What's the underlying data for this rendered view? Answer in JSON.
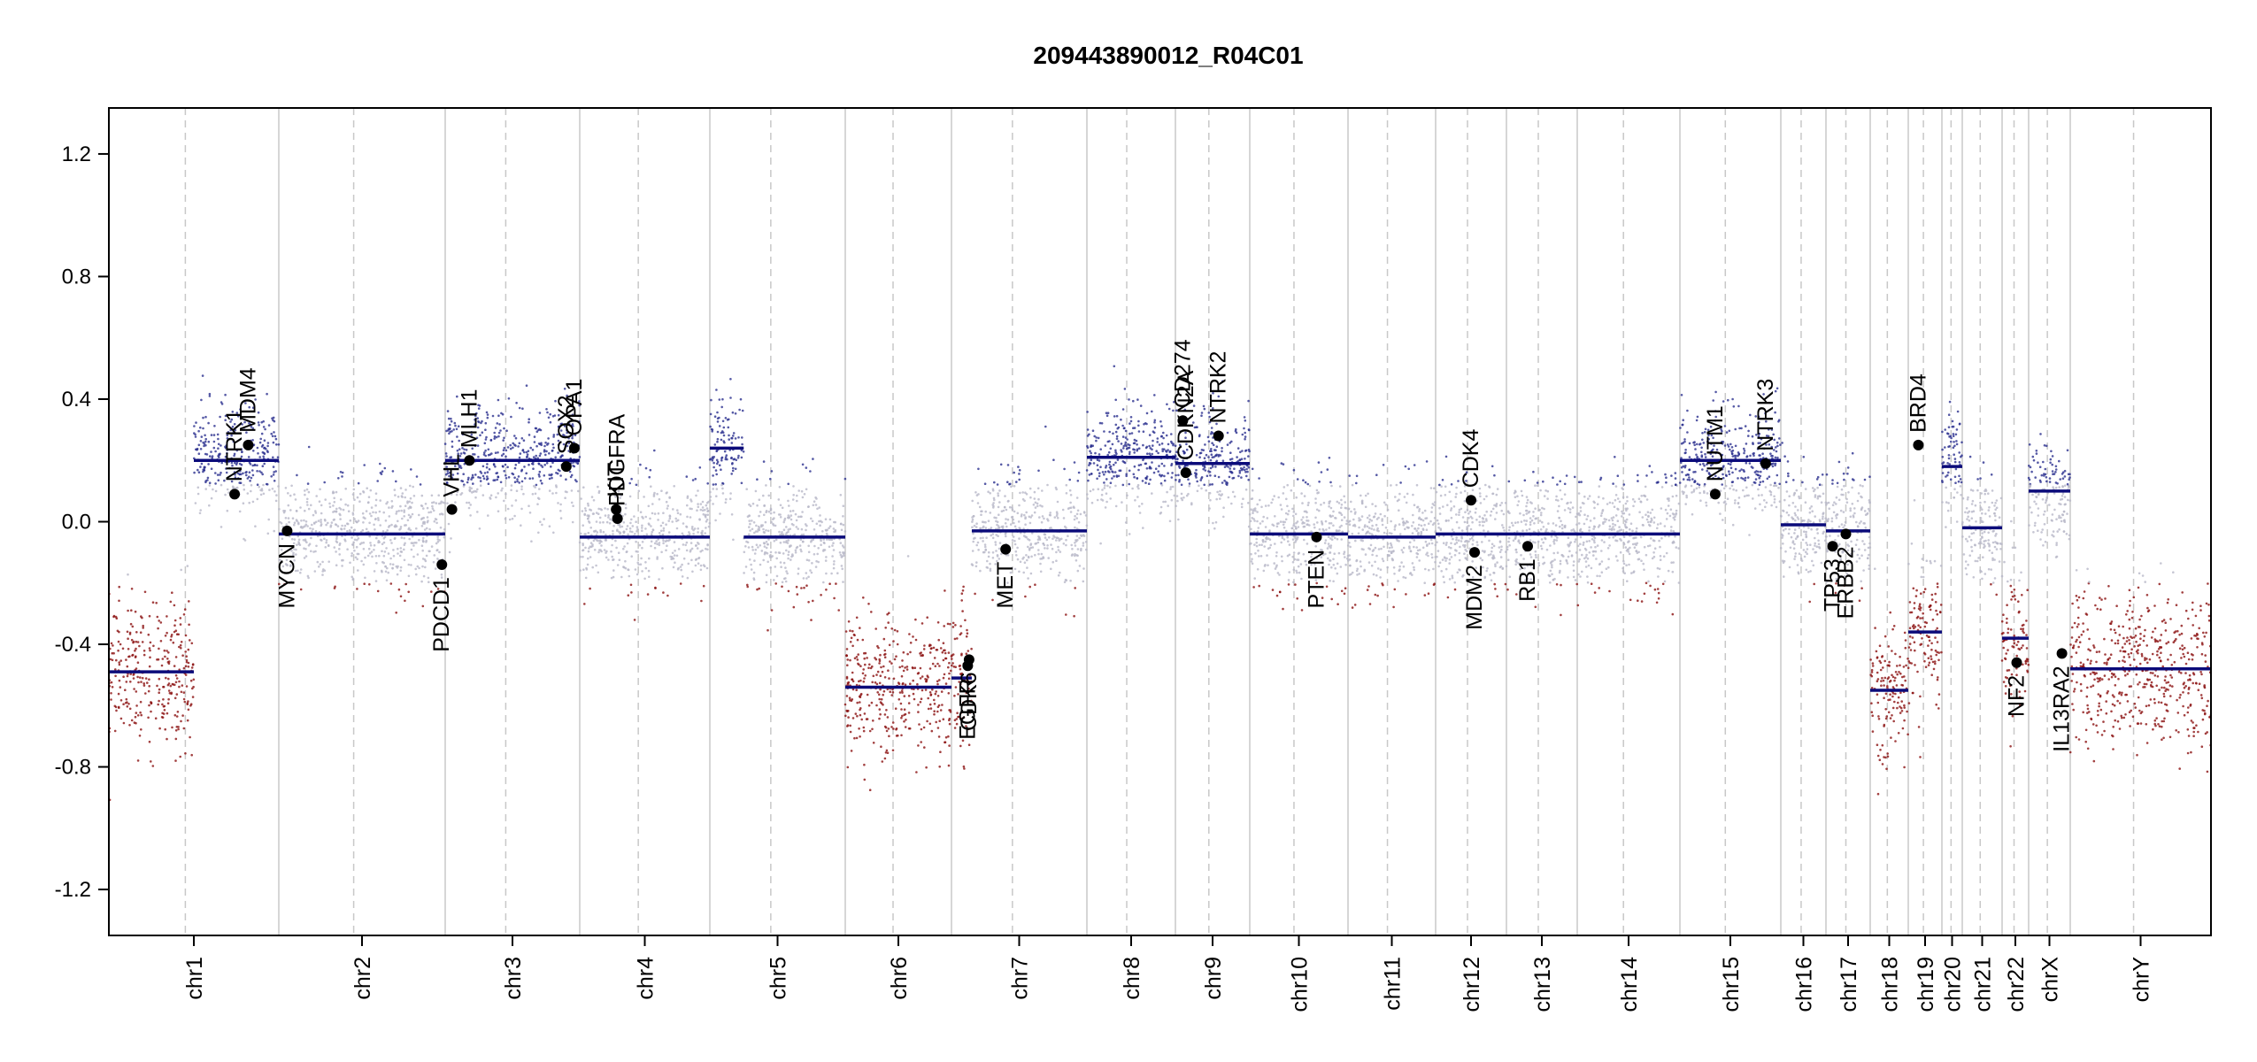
{
  "chart_data": {
    "type": "scatter",
    "title": "209443890012_R04C01",
    "xlabel": "",
    "ylabel": "",
    "ylim": [
      -1.35,
      1.35
    ],
    "y_ticks": [
      -1.2,
      -0.8,
      -0.4,
      0.0,
      0.4,
      0.8,
      1.2
    ],
    "y_tick_labels": [
      "-1.2",
      "-0.8",
      "-0.4",
      "0.0",
      "0.4",
      "0.8",
      "1.2"
    ],
    "grid": false,
    "point_colors": {
      "gain": "#2b2f8f",
      "neutral": "#b8b8c8",
      "loss": "#8b1010"
    },
    "segment_color": "#0b0b7a",
    "chromosomes": [
      {
        "label": "chr1",
        "segments": [
          {
            "f0": 0.0,
            "f1": 0.5,
            "value": -0.49
          },
          {
            "f0": 0.5,
            "f1": 1.0,
            "value": 0.2
          }
        ]
      },
      {
        "label": "chr2",
        "segments": [
          {
            "f0": 0.0,
            "f1": 1.0,
            "value": -0.04
          }
        ]
      },
      {
        "label": "chr3",
        "segments": [
          {
            "f0": 0.0,
            "f1": 1.0,
            "value": 0.2
          }
        ]
      },
      {
        "label": "chr4",
        "segments": [
          {
            "f0": 0.0,
            "f1": 1.0,
            "value": -0.05
          }
        ]
      },
      {
        "label": "chr5",
        "segments": [
          {
            "f0": 0.0,
            "f1": 0.25,
            "value": 0.24
          },
          {
            "f0": 0.25,
            "f1": 1.0,
            "value": -0.05
          }
        ]
      },
      {
        "label": "chr6",
        "segments": [
          {
            "f0": 0.0,
            "f1": 1.0,
            "value": -0.54
          }
        ]
      },
      {
        "label": "chr7",
        "segments": [
          {
            "f0": 0.0,
            "f1": 0.15,
            "value": -0.51
          },
          {
            "f0": 0.15,
            "f1": 1.0,
            "value": -0.03
          }
        ]
      },
      {
        "label": "chr8",
        "segments": [
          {
            "f0": 0.0,
            "f1": 1.0,
            "value": 0.21
          }
        ]
      },
      {
        "label": "chr9",
        "segments": [
          {
            "f0": 0.0,
            "f1": 1.0,
            "value": 0.19
          }
        ]
      },
      {
        "label": "chr10",
        "segments": [
          {
            "f0": 0.0,
            "f1": 1.0,
            "value": -0.04
          }
        ]
      },
      {
        "label": "chr11",
        "segments": [
          {
            "f0": 0.0,
            "f1": 1.0,
            "value": -0.05
          }
        ]
      },
      {
        "label": "chr12",
        "segments": [
          {
            "f0": 0.0,
            "f1": 1.0,
            "value": -0.04
          }
        ]
      },
      {
        "label": "chr13",
        "segments": [
          {
            "f0": 0.0,
            "f1": 1.0,
            "value": -0.04
          }
        ]
      },
      {
        "label": "chr14",
        "segments": [
          {
            "f0": 0.0,
            "f1": 1.0,
            "value": -0.04
          }
        ]
      },
      {
        "label": "chr15",
        "segments": [
          {
            "f0": 0.0,
            "f1": 1.0,
            "value": 0.2
          }
        ]
      },
      {
        "label": "chr16",
        "segments": [
          {
            "f0": 0.0,
            "f1": 1.0,
            "value": -0.01
          }
        ]
      },
      {
        "label": "chr17",
        "segments": [
          {
            "f0": 0.0,
            "f1": 1.0,
            "value": -0.03
          }
        ]
      },
      {
        "label": "chr18",
        "segments": [
          {
            "f0": 0.0,
            "f1": 1.0,
            "value": -0.55
          }
        ]
      },
      {
        "label": "chr19",
        "segments": [
          {
            "f0": 0.0,
            "f1": 1.0,
            "value": -0.36
          }
        ]
      },
      {
        "label": "chr20",
        "segments": [
          {
            "f0": 0.0,
            "f1": 1.0,
            "value": 0.18
          }
        ]
      },
      {
        "label": "chr21",
        "segments": [
          {
            "f0": 0.0,
            "f1": 1.0,
            "value": -0.02
          }
        ]
      },
      {
        "label": "chr22",
        "segments": [
          {
            "f0": 0.0,
            "f1": 1.0,
            "value": -0.38
          }
        ]
      },
      {
        "label": "chrX",
        "segments": [
          {
            "f0": 0.0,
            "f1": 1.0,
            "value": 0.1
          }
        ]
      },
      {
        "label": "chrY",
        "segments": [
          {
            "f0": 0.0,
            "f1": 1.0,
            "value": -0.48
          }
        ]
      }
    ],
    "genes": [
      {
        "name": "NTRK1",
        "chr": "chr1",
        "f": 0.74,
        "value": 0.09
      },
      {
        "name": "MDM4",
        "chr": "chr1",
        "f": 0.82,
        "value": 0.25
      },
      {
        "name": "MYCN",
        "chr": "chr2",
        "f": 0.05,
        "value": -0.03
      },
      {
        "name": "PDCD1",
        "chr": "chr2",
        "f": 0.98,
        "value": -0.14
      },
      {
        "name": "VHL",
        "chr": "chr3",
        "f": 0.05,
        "value": 0.04
      },
      {
        "name": "MLH1",
        "chr": "chr3",
        "f": 0.18,
        "value": 0.2
      },
      {
        "name": "SOX2",
        "chr": "chr3",
        "f": 0.9,
        "value": 0.18
      },
      {
        "name": "OPA1",
        "chr": "chr3",
        "f": 0.96,
        "value": 0.24
      },
      {
        "name": "KIT",
        "chr": "chr4",
        "f": 0.28,
        "value": 0.04
      },
      {
        "name": "PDGFRA",
        "chr": "chr4",
        "f": 0.29,
        "value": 0.01
      },
      {
        "name": "EGFR",
        "chr": "chr7",
        "f": 0.12,
        "value": -0.47
      },
      {
        "name": "CDK6",
        "chr": "chr7",
        "f": 0.13,
        "value": -0.45
      },
      {
        "name": "MET",
        "chr": "chr7",
        "f": 0.4,
        "value": -0.09
      },
      {
        "name": "CD274",
        "chr": "chr9",
        "f": 0.1,
        "value": 0.33
      },
      {
        "name": "CDKN2A",
        "chr": "chr9",
        "f": 0.14,
        "value": 0.16
      },
      {
        "name": "NTRK2",
        "chr": "chr9",
        "f": 0.58,
        "value": 0.28
      },
      {
        "name": "PTEN",
        "chr": "chr10",
        "f": 0.68,
        "value": -0.05
      },
      {
        "name": "CDK4",
        "chr": "chr12",
        "f": 0.5,
        "value": 0.07
      },
      {
        "name": "MDM2",
        "chr": "chr12",
        "f": 0.55,
        "value": -0.1
      },
      {
        "name": "RB1",
        "chr": "chr13",
        "f": 0.3,
        "value": -0.08
      },
      {
        "name": "NUTM1",
        "chr": "chr15",
        "f": 0.35,
        "value": 0.09
      },
      {
        "name": "NTRK3",
        "chr": "chr15",
        "f": 0.85,
        "value": 0.19
      },
      {
        "name": "TP53",
        "chr": "chr17",
        "f": 0.15,
        "value": -0.08
      },
      {
        "name": "ERBB2",
        "chr": "chr17",
        "f": 0.45,
        "value": -0.04
      },
      {
        "name": "BRD4",
        "chr": "chr19",
        "f": 0.3,
        "value": 0.25
      },
      {
        "name": "NF2",
        "chr": "chr22",
        "f": 0.55,
        "value": -0.46
      },
      {
        "name": "IL13RA2",
        "chr": "chrX",
        "f": 0.8,
        "value": -0.43
      }
    ]
  }
}
